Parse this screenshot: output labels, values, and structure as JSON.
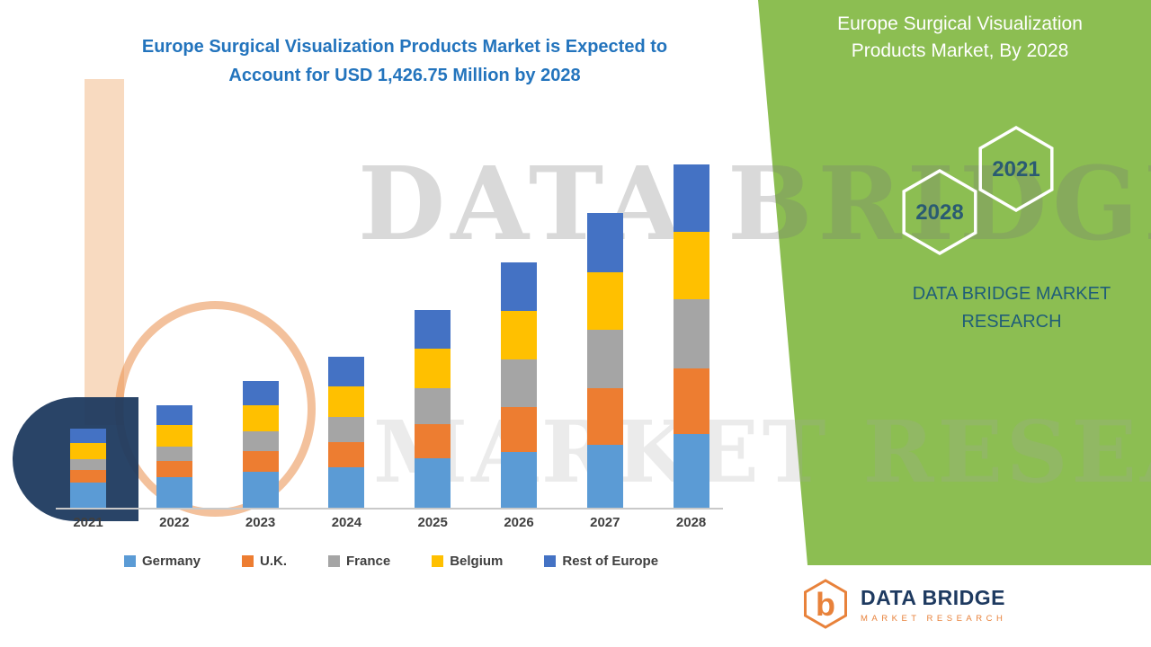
{
  "header": {
    "title_line1": "Europe Surgical Visualization Products Market is Expected to",
    "title_line2": "Account for USD 1,426.75 Million by 2028"
  },
  "side_panel": {
    "title_line1": "Europe Surgical Visualization",
    "title_line2": "Products Market, By 2028",
    "hex_back_label": "2028",
    "hex_front_label": "2021",
    "brand_line1": "DATA BRIDGE MARKET",
    "brand_line2": "RESEARCH"
  },
  "watermark": {
    "line1": "DATA BRIDGE",
    "line2": "MARKET RESEARCH"
  },
  "logo": {
    "glyph": "b",
    "brand": "DATA BRIDGE",
    "tagline": "MARKET RESEARCH"
  },
  "colors": {
    "panel_green": "#8CBE52",
    "title_blue": "#2374BD",
    "brand_teal": "#205E78",
    "logo_navy": "#1E3A60",
    "logo_orange": "#E8823B"
  },
  "chart_data": {
    "type": "bar",
    "stacked": true,
    "title": "Europe Surgical Visualization Products Market is Expected to Account for USD 1,426.75 Million by 2028",
    "units": "USD Million",
    "categories": [
      "2021",
      "2022",
      "2023",
      "2024",
      "2025",
      "2026",
      "2027",
      "2028"
    ],
    "series": [
      {
        "name": "Germany",
        "color": "#5B9BD5",
        "values": [
          104,
          127,
          149,
          168,
          205,
          231,
          261,
          306
        ]
      },
      {
        "name": "U.K.",
        "color": "#ED7D31",
        "values": [
          52,
          67,
          86,
          104,
          142,
          187,
          235,
          272
        ]
      },
      {
        "name": "France",
        "color": "#A5A5A5",
        "values": [
          45,
          60,
          82,
          104,
          149,
          198,
          243,
          287
        ]
      },
      {
        "name": "Belgium",
        "color": "#FFC000",
        "values": [
          67,
          90,
          108,
          127,
          164,
          201,
          239,
          280
        ]
      },
      {
        "name": "Rest of Europe",
        "color": "#4472C4",
        "values": [
          60,
          82,
          101,
          123,
          160,
          201,
          246,
          281.75
        ]
      }
    ],
    "totals": [
      328,
      426,
      526,
      626,
      820,
      1018,
      1224,
      1426.75
    ],
    "ylim": [
      0,
      1500
    ],
    "grid": false,
    "y_axis_visible": false,
    "legend_position": "bottom",
    "annotation_total_2028": "USD 1,426.75 Million"
  }
}
